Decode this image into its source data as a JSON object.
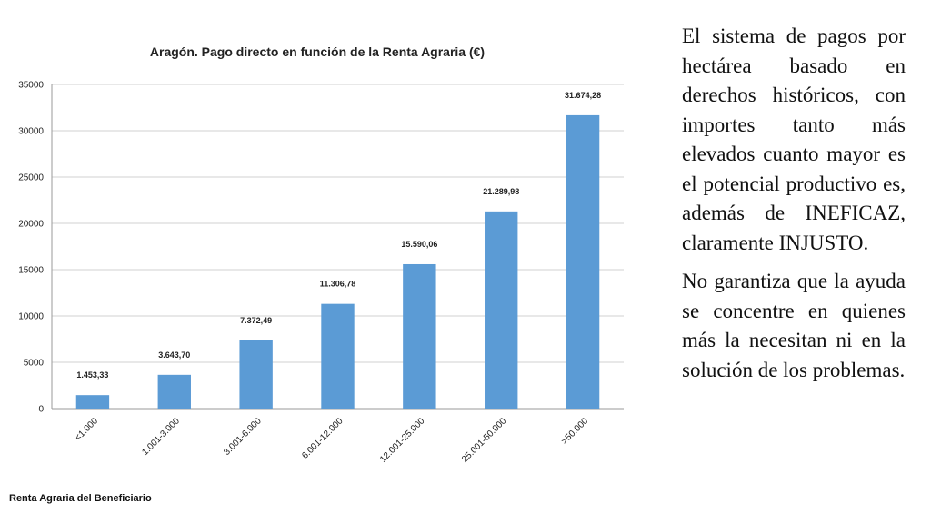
{
  "chart_data": {
    "type": "bar",
    "title": "Aragón. Pago directo en función de la Renta Agraria (€)",
    "categories": [
      "<1.000",
      "1.001-3.000",
      "3.001-6.000",
      "6.001-12.000",
      "12.001-25.000",
      "25.001-50.000",
      ">50.000"
    ],
    "values": [
      1453.33,
      3643.7,
      7372.49,
      11306.78,
      15590.06,
      21289.98,
      31674.28
    ],
    "data_labels": [
      "1.453,33",
      "3.643,70",
      "7.372,49",
      "11.306,78",
      "15.590,06",
      "21.289,98",
      "31.674,28"
    ],
    "yticks": [
      "0",
      "5000",
      "10000",
      "15000",
      "20000",
      "25000",
      "30000",
      "35000"
    ],
    "ylim": [
      0,
      35000
    ],
    "xlabel": "Renta Agraria del Beneficiario",
    "ylabel": "",
    "grid": true,
    "legend": false,
    "bar_color": "#5b9bd5"
  },
  "side_text": {
    "paragraph_1": "El sistema de pagos por hectárea basado en derechos históricos, con importes tanto más elevados cuanto mayor es el potencial productivo es, además de INEFICAZ, claramente INJUSTO.",
    "paragraph_2": "No garantiza que la ayuda se concentre en quienes más la necesitan ni en la solución de los problemas."
  }
}
